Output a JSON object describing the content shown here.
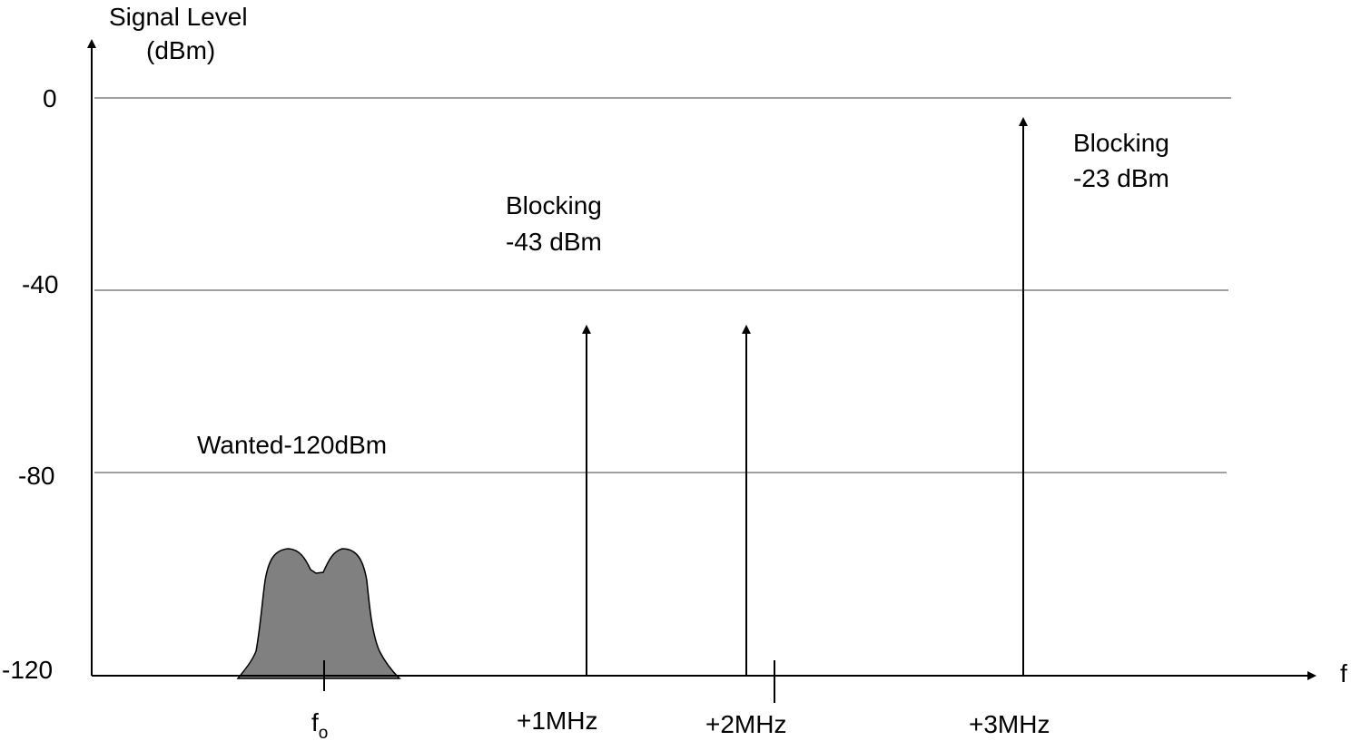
{
  "y_axis": {
    "title_line1": "Signal Level",
    "title_line2": "(dBm)"
  },
  "x_axis": {
    "label": "f"
  },
  "y_ticks": [
    "0",
    "-40",
    "-80",
    "-120"
  ],
  "x_ticks": {
    "f0_main": "f",
    "f0_sub": "o",
    "plus1": "+1MHz",
    "plus2": "+2MHz",
    "plus3": "+3MHz"
  },
  "annotations": {
    "wanted": "Wanted-120dBm",
    "blocking_mid_line1": "Blocking",
    "blocking_mid_line2": "-43 dBm",
    "blocking_high_line1": "Blocking",
    "blocking_high_line2": "-23 dBm"
  },
  "colors": {
    "axis": "#000000",
    "gridline": "#808080",
    "wanted_fill": "#808080"
  }
}
